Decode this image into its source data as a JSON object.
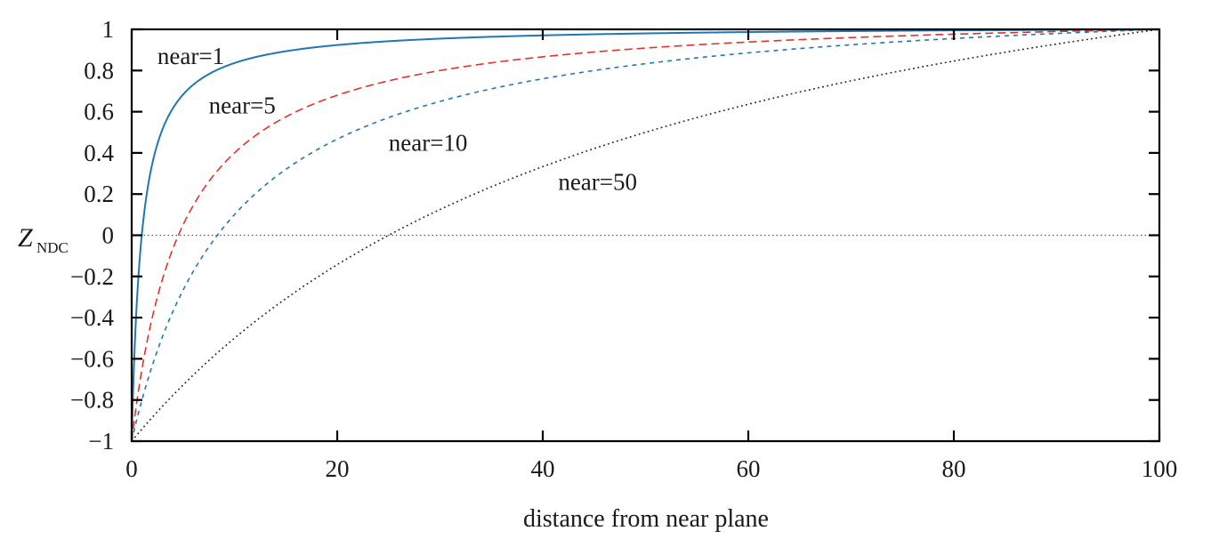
{
  "chart_data": {
    "type": "line",
    "xlabel": "distance from near plane",
    "ylabel_main": "Z",
    "ylabel_sub": "NDC",
    "xlim": [
      0,
      100
    ],
    "ylim": [
      -1,
      1
    ],
    "x_ticks": [
      0,
      20,
      40,
      60,
      80,
      100
    ],
    "x_tick_labels": [
      "0",
      "20",
      "40",
      "60",
      "80",
      "100"
    ],
    "y_ticks": [
      -1,
      -0.8,
      -0.6,
      -0.4,
      -0.2,
      0,
      0.2,
      0.4,
      0.6,
      0.8,
      1
    ],
    "y_tick_labels": [
      "−1",
      "−0.8",
      "−0.6",
      "−0.4",
      "−0.2",
      "0",
      "0.2",
      "0.4",
      "0.6",
      "0.8",
      "1"
    ],
    "reference_line": {
      "y": 0,
      "style": "dotted",
      "color": "#555555"
    },
    "grid": false,
    "series": [
      {
        "name": "near=1",
        "near": 1,
        "far_distance": 100,
        "style": "solid",
        "color": "#1f78b4",
        "x": [
          0,
          0.5,
          1,
          2,
          3,
          4,
          5,
          7,
          10,
          15,
          20,
          30,
          40,
          50,
          60,
          70,
          80,
          90,
          100
        ],
        "y": [
          -1,
          -0.32,
          0.01,
          0.34,
          0.51,
          0.61,
          0.67,
          0.76,
          0.83,
          0.88,
          0.91,
          0.94,
          0.96,
          0.97,
          0.98,
          0.99,
          0.99,
          1.0,
          1.0
        ]
      },
      {
        "name": "near=5",
        "near": 5,
        "far_distance": 100,
        "style": "dashed",
        "color": "#e0342a",
        "x": [
          0,
          2,
          4,
          6,
          8,
          10,
          15,
          20,
          30,
          40,
          50,
          60,
          70,
          80,
          90,
          100
        ],
        "y": [
          -1,
          -0.42,
          -0.05,
          0.19,
          0.36,
          0.49,
          0.67,
          0.77,
          0.87,
          0.92,
          0.95,
          0.97,
          0.98,
          0.99,
          1.0,
          1.0
        ]
      },
      {
        "name": "near=10",
        "near": 10,
        "far_distance": 100,
        "style": "dashed-fine",
        "color": "#1f78b4",
        "x": [
          0,
          2,
          4,
          6,
          8,
          10,
          15,
          20,
          30,
          40,
          50,
          60,
          70,
          80,
          90,
          100
        ],
        "y": [
          -1,
          -0.69,
          -0.44,
          -0.24,
          -0.08,
          0.05,
          0.3,
          0.47,
          0.68,
          0.8,
          0.88,
          0.92,
          0.96,
          0.98,
          0.99,
          1.0
        ]
      },
      {
        "name": "near=50",
        "near": 50,
        "far_distance": 100,
        "style": "dotted",
        "color": "#222222",
        "x": [
          0,
          10,
          20,
          25,
          30,
          40,
          50,
          60,
          70,
          80,
          90,
          100
        ],
        "y": [
          -1,
          -0.63,
          -0.31,
          -0.17,
          -0.05,
          0.17,
          0.33,
          0.48,
          0.6,
          0.7,
          0.78,
          1.0
        ]
      }
    ],
    "annotations": [
      {
        "text": "near=1",
        "x": 2.5,
        "y": 0.87
      },
      {
        "text": "near=5",
        "x": 7.5,
        "y": 0.63
      },
      {
        "text": "near=10",
        "x": 25,
        "y": 0.45
      },
      {
        "text": "near=50",
        "x": 41.5,
        "y": 0.26
      }
    ],
    "legend": "none"
  }
}
